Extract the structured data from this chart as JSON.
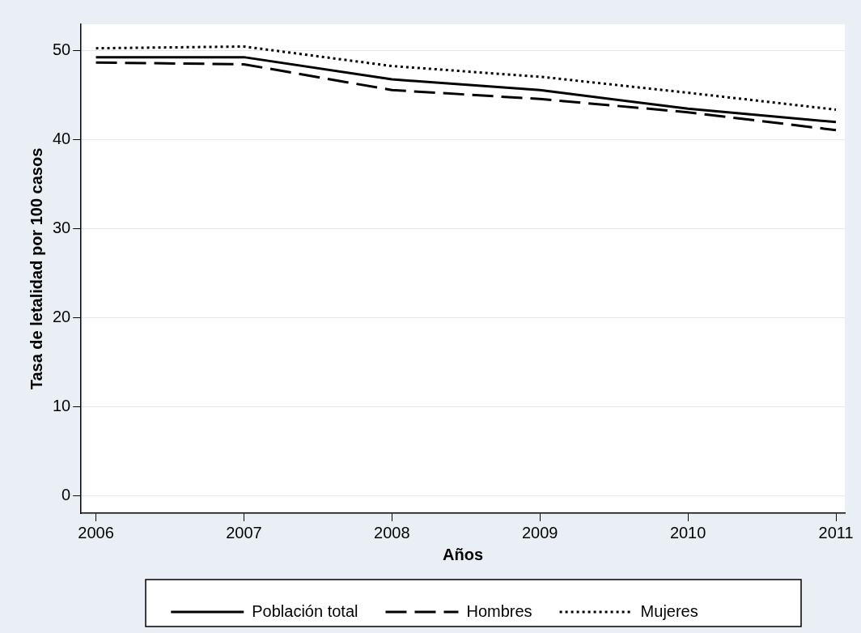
{
  "chart_data": {
    "type": "line",
    "xlabel": "Años",
    "ylabel": "Tasa de letalidad por 100 casos",
    "x": [
      2006,
      2007,
      2008,
      2009,
      2010,
      2011
    ],
    "series": [
      {
        "name": "Población total",
        "color": "#000000",
        "line_style": "solid",
        "values": [
          49.3,
          49.3,
          46.8,
          45.6,
          43.5,
          42.0
        ]
      },
      {
        "name": "Hombres",
        "color": "#000000",
        "line_style": "dashed",
        "values": [
          48.7,
          48.5,
          45.6,
          44.6,
          43.1,
          41.1
        ]
      },
      {
        "name": "Mujeres",
        "color": "#000000",
        "line_style": "dotted",
        "values": [
          50.3,
          50.5,
          48.3,
          47.1,
          45.3,
          43.4
        ]
      }
    ],
    "xlim": [
      2005.9,
      2011.06
    ],
    "xticks": [
      2006,
      2007,
      2008,
      2009,
      2010,
      2011
    ],
    "ylim": [
      -2,
      53
    ],
    "yticks": [
      0,
      10,
      20,
      30,
      40,
      50
    ],
    "grid": "y",
    "legend": "bottom",
    "marker": "none"
  }
}
